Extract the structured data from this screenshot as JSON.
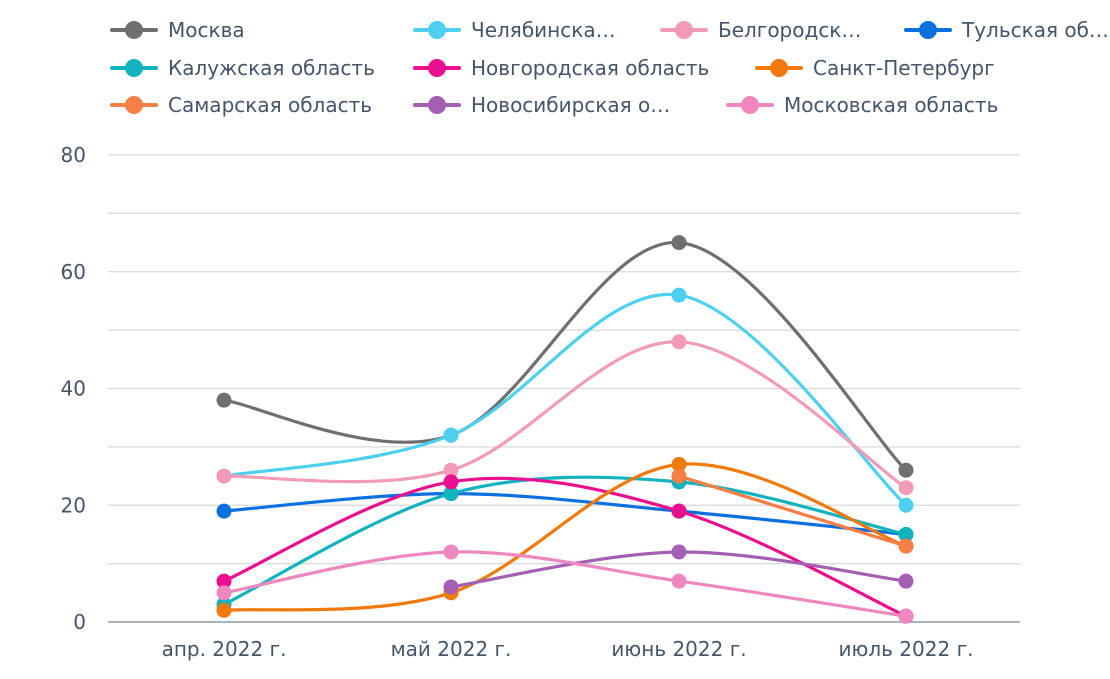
{
  "chart_data": {
    "type": "line",
    "title": "",
    "xlabel": "",
    "ylabel": "",
    "categories": [
      "апр. 2022 г.",
      "май 2022 г.",
      "июнь 2022 г.",
      "июль 2022 г."
    ],
    "y_ticks": [
      "0",
      "20",
      "40",
      "60",
      "80"
    ],
    "ylim": [
      0,
      80
    ],
    "grid": true,
    "legend_position": "top",
    "series": [
      {
        "name": "Москва",
        "color": "#6f6f6f",
        "values": [
          38,
          32,
          65,
          26
        ]
      },
      {
        "name": "Челябинска…",
        "color": "#4dd0f0",
        "values": [
          25,
          32,
          56,
          20
        ]
      },
      {
        "name": "Белгородск…",
        "color": "#f29bb8",
        "values": [
          25,
          26,
          48,
          23
        ]
      },
      {
        "name": "Тульская об…",
        "color": "#0b6fe0",
        "values": [
          19,
          22,
          19,
          15
        ]
      },
      {
        "name": "Калужская область",
        "color": "#12b3bf",
        "values": [
          3,
          22,
          24,
          15
        ]
      },
      {
        "name": "Новгородская область",
        "color": "#ea0f8f",
        "values": [
          7,
          24,
          19,
          1
        ]
      },
      {
        "name": "Санкт-Петербург",
        "color": "#f07a0c",
        "values": [
          2,
          5,
          27,
          13
        ]
      },
      {
        "name": "Самарская область",
        "color": "#f77e45",
        "values": [
          null,
          null,
          25,
          13
        ]
      },
      {
        "name": "Новосибирская о…",
        "color": "#a45fb3",
        "values": [
          null,
          6,
          12,
          7
        ]
      },
      {
        "name": "Московская область",
        "color": "#ee87bf",
        "values": [
          5,
          12,
          7,
          1
        ]
      }
    ]
  }
}
